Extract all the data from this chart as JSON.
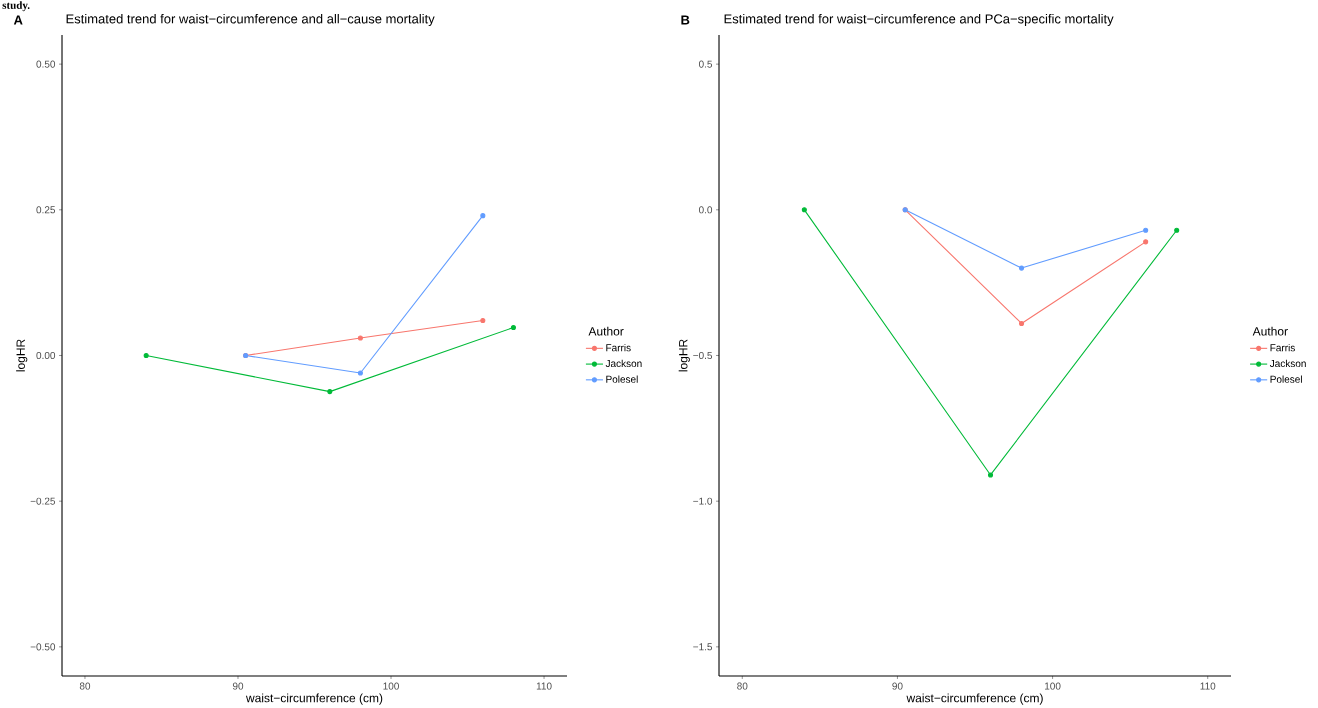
{
  "chart_data": [
    {
      "type": "line",
      "title": "Estimated trend for waist−circumference and all−cause mortality",
      "xlabel": "waist−circumference (cm)",
      "ylabel": "logHR",
      "legend_title": "Author",
      "annotations": [
        "A",
        "study."
      ],
      "series": [
        {
          "name": "Farris",
          "color": "#f8766d",
          "x": [
            90.5,
            98,
            106
          ],
          "values": [
            0,
            0.03,
            0.06
          ]
        },
        {
          "name": "Jackson",
          "color": "#00ba38",
          "x": [
            84,
            96,
            108
          ],
          "values": [
            0,
            -0.062,
            0.048
          ]
        },
        {
          "name": "Polesel",
          "color": "#619cff",
          "x": [
            90.5,
            98,
            106
          ],
          "values": [
            0,
            -0.03,
            0.24
          ]
        }
      ],
      "xlim": [
        78.5,
        111.5
      ],
      "ylim": [
        -0.55,
        0.55
      ],
      "xticks": [
        80,
        90,
        100,
        110
      ],
      "yticks": [
        {
          "value": -0.5,
          "label": "−0.50"
        },
        {
          "value": -0.25,
          "label": "−0.25"
        },
        {
          "value": 0,
          "label": "0.00"
        },
        {
          "value": 0.25,
          "label": "0.25"
        },
        {
          "value": 0.5,
          "label": "0.50"
        }
      ],
      "grid": false,
      "legend": "right",
      "marker": "circle",
      "line_style": "solid"
    },
    {
      "type": "line",
      "title": "Estimated trend for waist−circumference and PCa−specific mortality",
      "xlabel": "waist−circumference (cm)",
      "ylabel": "logHR",
      "legend_title": "Author",
      "annotations": [
        "B"
      ],
      "series": [
        {
          "name": "Farris",
          "color": "#f8766d",
          "x": [
            90.5,
            98,
            106
          ],
          "values": [
            0,
            -0.39,
            -0.11
          ]
        },
        {
          "name": "Jackson",
          "color": "#00ba38",
          "x": [
            84,
            96,
            108
          ],
          "values": [
            0,
            -0.91,
            -0.07
          ]
        },
        {
          "name": "Polesel",
          "color": "#619cff",
          "x": [
            90.5,
            98,
            106
          ],
          "values": [
            0,
            -0.2,
            -0.07
          ]
        }
      ],
      "xlim": [
        78.5,
        111.5
      ],
      "ylim": [
        -1.6,
        0.6
      ],
      "xticks": [
        80,
        90,
        100,
        110
      ],
      "yticks": [
        {
          "value": -1.5,
          "label": "−1.5"
        },
        {
          "value": -1,
          "label": "−1.0"
        },
        {
          "value": -0.5,
          "label": "−0.5"
        },
        {
          "value": 0,
          "label": "0.0"
        },
        {
          "value": 0.5,
          "label": "0.5"
        }
      ],
      "grid": false,
      "legend": "right",
      "marker": "circle",
      "line_style": "solid"
    }
  ]
}
